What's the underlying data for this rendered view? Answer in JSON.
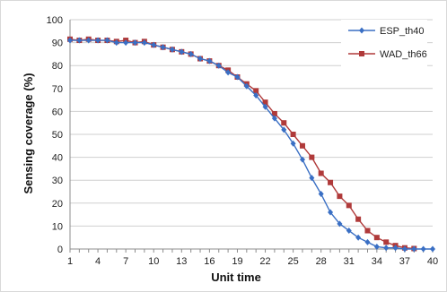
{
  "chart_data": {
    "type": "line",
    "title": "",
    "xlabel": "Unit time",
    "ylabel": "Sensing coverage (%)",
    "xlim": [
      1,
      40
    ],
    "ylim": [
      0,
      100
    ],
    "x_ticks": [
      1,
      4,
      7,
      10,
      13,
      16,
      19,
      22,
      25,
      28,
      31,
      34,
      37,
      40
    ],
    "y_ticks": [
      0,
      10,
      20,
      30,
      40,
      50,
      60,
      70,
      80,
      90,
      100
    ],
    "grid": "horizontal",
    "legend_position": "top-right",
    "x": [
      1,
      2,
      3,
      4,
      5,
      6,
      7,
      8,
      9,
      10,
      11,
      12,
      13,
      14,
      15,
      16,
      17,
      18,
      19,
      20,
      21,
      22,
      23,
      24,
      25,
      26,
      27,
      28,
      29,
      30,
      31,
      32,
      33,
      34,
      35,
      36,
      37,
      38,
      39,
      40
    ],
    "series": [
      {
        "name": "ESP_th40",
        "color": "#3a6fc4",
        "marker": "diamond",
        "values": [
          91,
          91,
          91,
          91,
          91,
          90,
          90,
          90,
          90,
          89,
          88,
          87,
          86,
          85,
          83,
          82,
          80,
          77,
          75,
          71,
          67,
          62,
          57,
          52,
          46,
          39,
          31,
          24,
          16,
          11,
          8,
          5,
          3,
          1,
          0.5,
          0.5,
          0,
          0,
          0,
          0
        ]
      },
      {
        "name": "WAD_th66",
        "color": "#b03a3a",
        "marker": "square",
        "values": [
          91.5,
          91,
          91.5,
          91,
          91,
          90.5,
          91,
          90,
          90.5,
          89,
          88,
          87,
          86,
          85,
          83,
          82,
          80,
          78,
          75,
          72,
          69,
          64,
          59,
          55,
          50,
          45,
          40,
          33,
          29,
          23,
          19,
          13,
          8,
          5,
          3,
          1.5,
          0.5,
          0.2,
          null,
          null
        ]
      }
    ]
  }
}
